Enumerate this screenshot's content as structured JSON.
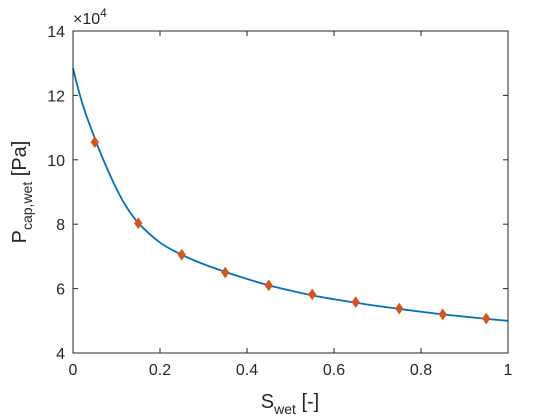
{
  "chart_data": {
    "type": "line",
    "title": "",
    "xlabel": {
      "main": "S",
      "sub": "wet",
      "unit": " [-]"
    },
    "ylabel": {
      "main": "P",
      "sub": "cap,wet",
      "unit": " [Pa]"
    },
    "xlim": [
      0,
      1
    ],
    "ylim": [
      40000,
      140000
    ],
    "x_ticks": [
      0,
      0.2,
      0.4,
      0.6,
      0.8,
      1
    ],
    "x_tick_labels": [
      "0",
      "0.2",
      "0.4",
      "0.6",
      "0.8",
      "1"
    ],
    "y_ticks": [
      40000,
      60000,
      80000,
      100000,
      120000,
      140000
    ],
    "y_tick_labels": [
      "4",
      "6",
      "8",
      "10",
      "12",
      "14"
    ],
    "y_exponent": {
      "base": "×10",
      "power": "4"
    },
    "grid": false,
    "series": [
      {
        "style": "line",
        "color": "#0072BD",
        "x": [
          0.0,
          0.01,
          0.02,
          0.03,
          0.04,
          0.05,
          0.06,
          0.08,
          0.1,
          0.12,
          0.15,
          0.2,
          0.25,
          0.3,
          0.35,
          0.4,
          0.45,
          0.5,
          0.55,
          0.6,
          0.65,
          0.7,
          0.75,
          0.8,
          0.85,
          0.9,
          0.95,
          1.0
        ],
        "y": [
          128500,
          123000,
          118200,
          114000,
          110300,
          106700,
          103200,
          96800,
          91000,
          86000,
          80400,
          74300,
          70500,
          67600,
          65200,
          63000,
          61000,
          59400,
          57900,
          56700,
          55600,
          54600,
          53700,
          52800,
          52000,
          51300,
          50600,
          50000
        ]
      },
      {
        "style": "markers",
        "marker": "diamond",
        "color": "#D95319",
        "x": [
          0.05,
          0.15,
          0.25,
          0.35,
          0.45,
          0.55,
          0.65,
          0.75,
          0.85,
          0.95
        ],
        "y": [
          105500,
          80300,
          70500,
          65000,
          61000,
          58200,
          55800,
          53800,
          52000,
          50700
        ]
      }
    ]
  }
}
